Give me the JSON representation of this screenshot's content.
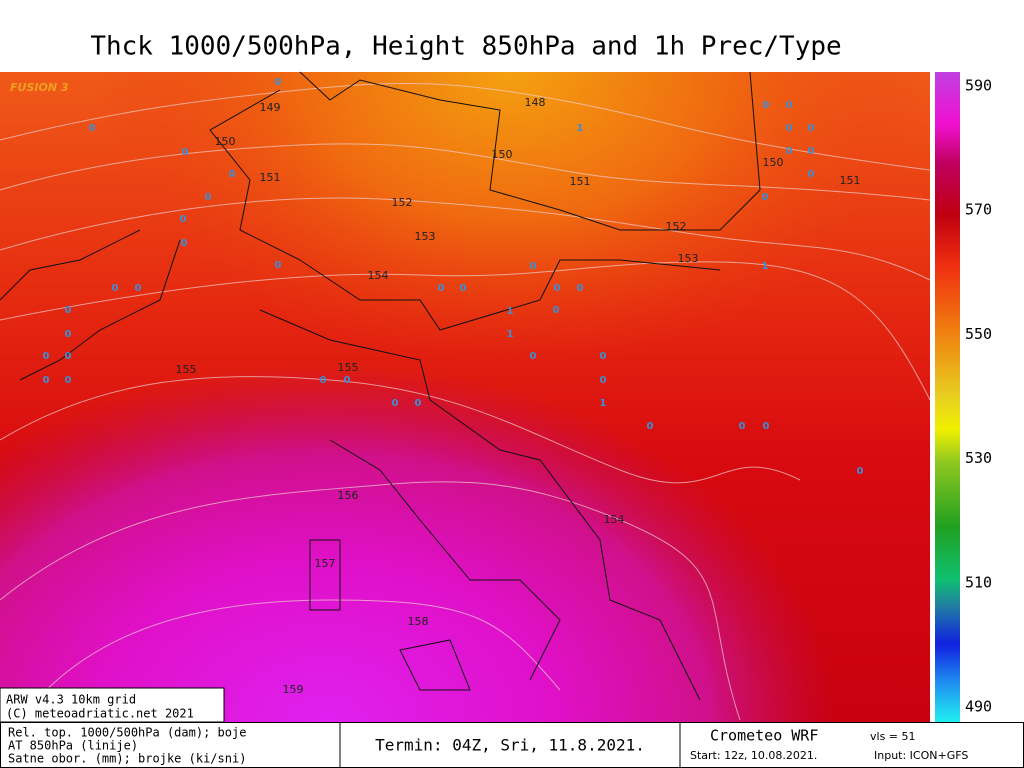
{
  "header": {
    "title": "Thck 1000/500hPa, Height 850hPa and 1h Prec/Type"
  },
  "map": {
    "watermark": "FUSION 3",
    "contour_labels": [
      149,
      148,
      150,
      150,
      151,
      151,
      150,
      151,
      152,
      152,
      153,
      153,
      154,
      155,
      155,
      156,
      154,
      157,
      158,
      159
    ],
    "precip_labels": [
      0,
      0,
      0,
      0,
      0,
      0,
      0,
      0,
      0,
      0,
      0,
      0,
      0,
      0,
      0,
      0,
      1,
      1,
      0,
      0,
      0,
      0,
      0,
      0,
      0,
      0,
      0,
      1,
      0,
      0,
      0,
      0,
      0,
      1,
      0,
      0,
      0,
      0,
      0,
      0,
      0,
      0,
      1,
      0,
      0,
      0
    ]
  },
  "colorbar": {
    "ticks": [
      590,
      570,
      550,
      530,
      510,
      490
    ]
  },
  "footer": {
    "model": "ARW v4.3 10km grid",
    "copyright": "(C) meteoadriatic.net 2021",
    "legend": [
      "Rel. top. 1000/500hPa (dam); boje",
      "AT 850hPa (linije)",
      "Satne obor. (mm); brojke (ki/sni)"
    ],
    "run_time": "Termin: 04Z, Sri, 11.8.2021.",
    "brand": "Crometeo WRF",
    "vls": "vls = 51",
    "start": "Start: 12z, 10.08.2021.",
    "input": "Input: ICON+GFS"
  }
}
